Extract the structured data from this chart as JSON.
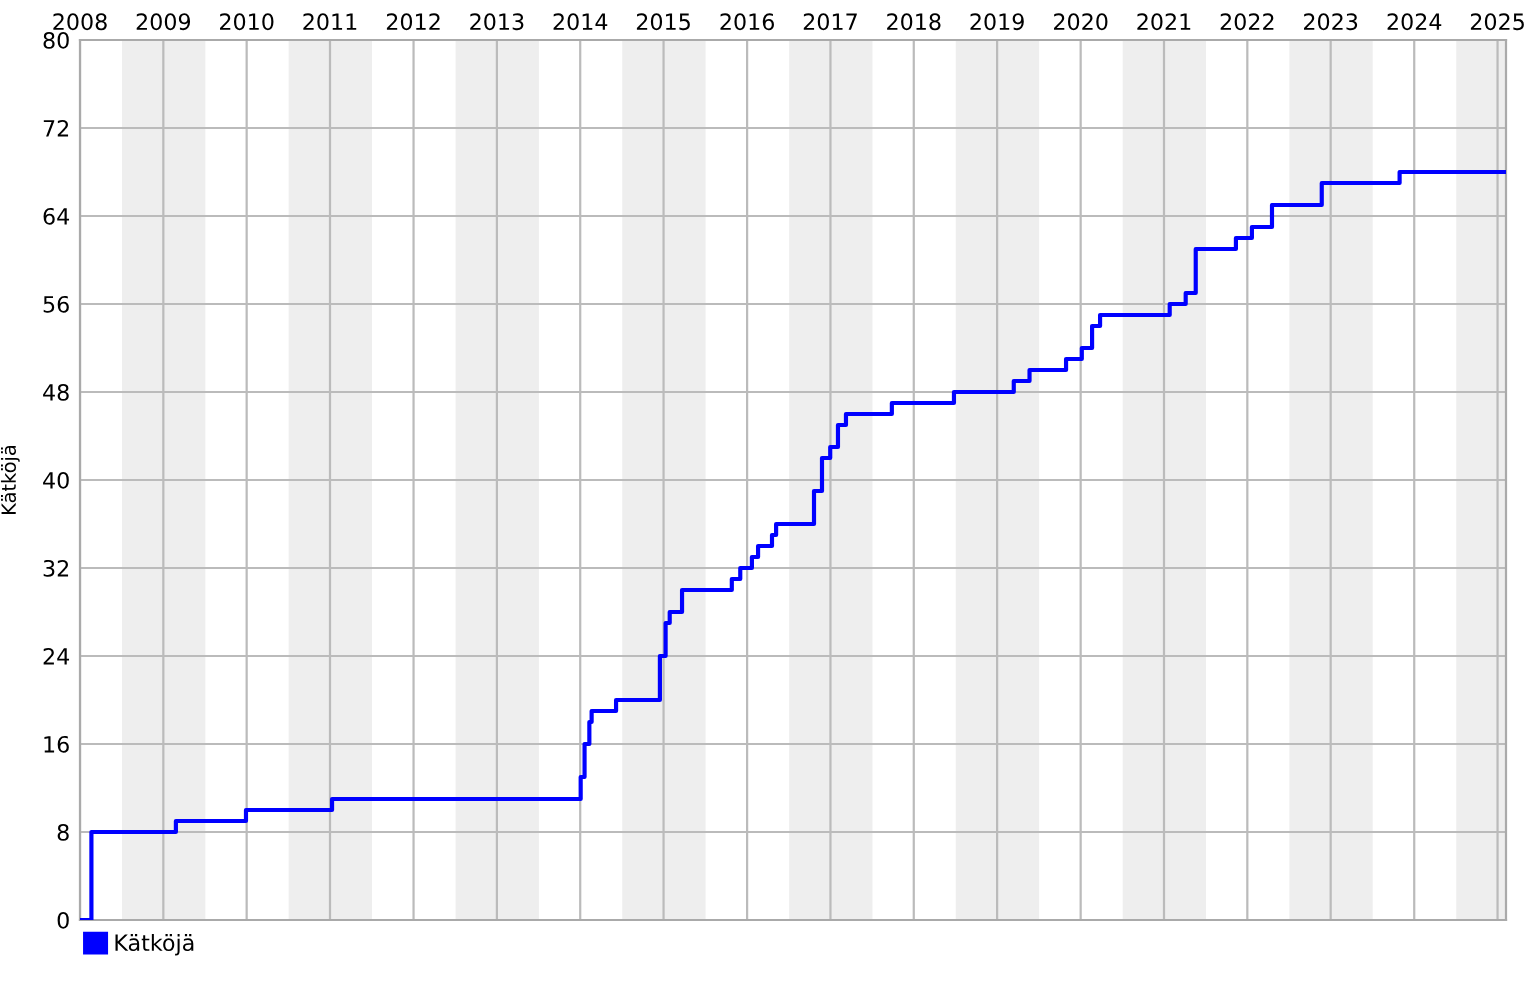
{
  "chart_data": {
    "type": "step",
    "ylabel": "Kätköjä",
    "x": [
      "2008-07-01",
      "2008-08-20",
      "2009-08-25",
      "2010-06-28",
      "2011-07-10",
      "2014-07-03",
      "2014-07-20",
      "2014-08-10",
      "2014-08-20",
      "2014-12-05",
      "2015-06-15",
      "2015-07-10",
      "2015-07-28",
      "2015-09-20",
      "2016-04-25",
      "2016-06-01",
      "2016-07-22",
      "2016-08-18",
      "2016-10-18",
      "2016-11-05",
      "2017-04-20",
      "2017-05-25",
      "2017-06-30",
      "2017-08-03",
      "2017-09-07",
      "2018-03-27",
      "2018-12-24",
      "2019-09-12",
      "2019-11-20",
      "2020-04-28",
      "2020-07-06",
      "2020-08-20",
      "2020-09-24",
      "2021-07-26",
      "2021-10-04",
      "2021-11-17",
      "2022-05-12",
      "2022-07-21",
      "2022-10-17",
      "2023-05-23",
      "2024-04-28",
      "2025-08-07"
    ],
    "series": [
      {
        "name": "Kätköjä",
        "color": "#0000ff",
        "values": [
          0,
          8,
          9,
          10,
          11,
          13,
          16,
          18,
          19,
          20,
          24,
          27,
          28,
          30,
          31,
          32,
          33,
          34,
          35,
          36,
          39,
          42,
          43,
          45,
          46,
          47,
          48,
          49,
          50,
          51,
          52,
          54,
          55,
          56,
          57,
          61,
          62,
          63,
          65,
          67,
          68,
          68
        ]
      }
    ],
    "xlim": [
      "2008-07-01",
      "2025-08-07"
    ],
    "xticks": [
      {
        "value": "2008-07-01",
        "label": "2008"
      },
      {
        "value": "2009-07-01",
        "label": "2009"
      },
      {
        "value": "2010-07-01",
        "label": "2010"
      },
      {
        "value": "2011-07-01",
        "label": "2011"
      },
      {
        "value": "2012-07-01",
        "label": "2012"
      },
      {
        "value": "2013-07-01",
        "label": "2013"
      },
      {
        "value": "2014-07-01",
        "label": "2014"
      },
      {
        "value": "2015-07-01",
        "label": "2015"
      },
      {
        "value": "2016-07-01",
        "label": "2016"
      },
      {
        "value": "2017-07-01",
        "label": "2017"
      },
      {
        "value": "2018-07-01",
        "label": "2018"
      },
      {
        "value": "2019-07-01",
        "label": "2019"
      },
      {
        "value": "2020-07-01",
        "label": "2020"
      },
      {
        "value": "2021-07-01",
        "label": "2021"
      },
      {
        "value": "2022-07-01",
        "label": "2022"
      },
      {
        "value": "2023-07-01",
        "label": "2023"
      },
      {
        "value": "2024-07-01",
        "label": "2024"
      },
      {
        "value": "2025-07-01",
        "label": "2025"
      }
    ],
    "ylim": [
      0,
      80
    ],
    "yticks": [
      0,
      8,
      16,
      24,
      32,
      40,
      48,
      56,
      64,
      72,
      80
    ],
    "bands": [
      {
        "axis": "x",
        "from": "2009-01-01",
        "to": "2010-01-01",
        "color": "#eeeeee"
      },
      {
        "axis": "x",
        "from": "2011-01-01",
        "to": "2012-01-01",
        "color": "#eeeeee"
      },
      {
        "axis": "x",
        "from": "2013-01-01",
        "to": "2014-01-01",
        "color": "#eeeeee"
      },
      {
        "axis": "x",
        "from": "2015-01-01",
        "to": "2016-01-01",
        "color": "#eeeeee"
      },
      {
        "axis": "x",
        "from": "2017-01-01",
        "to": "2018-01-01",
        "color": "#eeeeee"
      },
      {
        "axis": "x",
        "from": "2019-01-01",
        "to": "2020-01-01",
        "color": "#eeeeee"
      },
      {
        "axis": "x",
        "from": "2021-01-01",
        "to": "2022-01-01",
        "color": "#eeeeee"
      },
      {
        "axis": "x",
        "from": "2023-01-01",
        "to": "2024-01-01",
        "color": "#eeeeee"
      },
      {
        "axis": "x",
        "from": "2025-01-01",
        "to": "2025-08-07",
        "color": "#eeeeee"
      }
    ],
    "grid": true,
    "legend": "bottom left",
    "marker": "none",
    "line_style": "solid"
  }
}
